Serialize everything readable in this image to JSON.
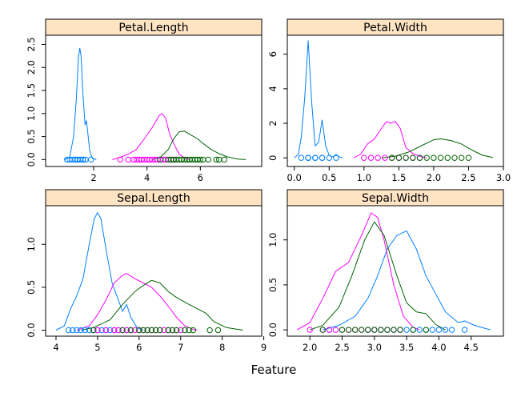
{
  "chart_data": {
    "type": "line",
    "subtype": "density-lattice",
    "xlabel": "Feature",
    "colors": {
      "strip_background": "#ffe4c4",
      "setosa": "#0080ff",
      "versicolor": "#ff00ff",
      "virginica": "#006400"
    },
    "series_order": [
      "setosa",
      "versicolor",
      "virginica"
    ],
    "panels": [
      {
        "title": "Petal.Length",
        "xlim": [
          0.2,
          8.3
        ],
        "ylim": [
          -0.15,
          2.7
        ],
        "xticks": [
          2,
          4,
          6
        ],
        "xtick_labels": [
          "2",
          "4",
          "6"
        ],
        "yticks": [
          0,
          0.5,
          1,
          1.5,
          2,
          2.5
        ],
        "ytick_labels": [
          "0.0",
          "0.5",
          "1.0",
          "1.5",
          "2.0",
          "2.5"
        ],
        "densities": {
          "setosa": [
            [
              0.9,
              0
            ],
            [
              1.1,
              0.05
            ],
            [
              1.25,
              0.5
            ],
            [
              1.35,
              1.3
            ],
            [
              1.43,
              2.2
            ],
            [
              1.48,
              2.42
            ],
            [
              1.53,
              2.25
            ],
            [
              1.6,
              1.4
            ],
            [
              1.68,
              0.75
            ],
            [
              1.73,
              0.85
            ],
            [
              1.77,
              0.65
            ],
            [
              1.85,
              0.2
            ],
            [
              1.95,
              0.03
            ],
            [
              2.1,
              0
            ]
          ],
          "versicolor": [
            [
              2.7,
              0
            ],
            [
              3.0,
              0.05
            ],
            [
              3.3,
              0.12
            ],
            [
              3.6,
              0.22
            ],
            [
              3.9,
              0.45
            ],
            [
              4.2,
              0.7
            ],
            [
              4.45,
              0.95
            ],
            [
              4.55,
              1.0
            ],
            [
              4.7,
              0.9
            ],
            [
              4.85,
              0.55
            ],
            [
              5.0,
              0.35
            ],
            [
              5.2,
              0.12
            ],
            [
              5.45,
              0.02
            ],
            [
              5.6,
              0
            ]
          ],
          "virginica": [
            [
              4.2,
              0
            ],
            [
              4.5,
              0.05
            ],
            [
              4.8,
              0.22
            ],
            [
              5.0,
              0.45
            ],
            [
              5.2,
              0.6
            ],
            [
              5.4,
              0.62
            ],
            [
              5.6,
              0.55
            ],
            [
              5.9,
              0.45
            ],
            [
              6.1,
              0.35
            ],
            [
              6.4,
              0.22
            ],
            [
              6.7,
              0.13
            ],
            [
              7.0,
              0.06
            ],
            [
              7.4,
              0.01
            ],
            [
              7.7,
              0
            ]
          ]
        },
        "points": {
          "setosa": [
            1.0,
            1.1,
            1.2,
            1.3,
            1.3,
            1.4,
            1.4,
            1.5,
            1.5,
            1.6,
            1.6,
            1.7,
            1.9
          ],
          "versicolor": [
            3.0,
            3.3,
            3.5,
            3.6,
            3.7,
            3.8,
            3.9,
            4.0,
            4.1,
            4.2,
            4.3,
            4.4,
            4.5,
            4.6,
            4.7,
            4.8,
            4.9,
            5.0,
            5.1
          ],
          "virginica": [
            4.5,
            4.8,
            4.9,
            5.0,
            5.1,
            5.2,
            5.3,
            5.4,
            5.5,
            5.6,
            5.7,
            5.8,
            5.9,
            6.0,
            6.1,
            6.3,
            6.6,
            6.7,
            6.9
          ]
        }
      },
      {
        "title": "Petal.Width",
        "xlim": [
          -0.1,
          3.0
        ],
        "ylim": [
          -0.5,
          7.1
        ],
        "xticks": [
          0.0,
          0.5,
          1.0,
          1.5,
          2.0,
          2.5,
          3.0
        ],
        "xtick_labels": [
          "0.0",
          "0.5",
          "1.0",
          "1.5",
          "2.0",
          "2.5",
          "3.0"
        ],
        "yticks": [
          0,
          2,
          4,
          6
        ],
        "ytick_labels": [
          "0",
          "2",
          "4",
          "6"
        ],
        "densities": {
          "setosa": [
            [
              0.0,
              0
            ],
            [
              0.06,
              0.2
            ],
            [
              0.1,
              1.2
            ],
            [
              0.15,
              3.5
            ],
            [
              0.2,
              6.8
            ],
            [
              0.25,
              3.2
            ],
            [
              0.3,
              0.7
            ],
            [
              0.35,
              0.9
            ],
            [
              0.4,
              2.2
            ],
            [
              0.45,
              0.7
            ],
            [
              0.5,
              0.15
            ],
            [
              0.55,
              0.05
            ],
            [
              0.6,
              0.2
            ],
            [
              0.65,
              0.05
            ],
            [
              0.7,
              0
            ]
          ],
          "versicolor": [
            [
              0.85,
              0
            ],
            [
              0.95,
              0.2
            ],
            [
              1.05,
              0.8
            ],
            [
              1.15,
              1.1
            ],
            [
              1.25,
              1.7
            ],
            [
              1.32,
              2.1
            ],
            [
              1.38,
              2.0
            ],
            [
              1.45,
              2.1
            ],
            [
              1.52,
              1.7
            ],
            [
              1.6,
              0.6
            ],
            [
              1.7,
              0.25
            ],
            [
              1.8,
              0.1
            ],
            [
              1.9,
              0
            ]
          ],
          "virginica": [
            [
              1.25,
              0
            ],
            [
              1.45,
              0.1
            ],
            [
              1.65,
              0.35
            ],
            [
              1.85,
              0.75
            ],
            [
              2.0,
              1.05
            ],
            [
              2.1,
              1.1
            ],
            [
              2.25,
              1.0
            ],
            [
              2.4,
              0.8
            ],
            [
              2.55,
              0.45
            ],
            [
              2.7,
              0.15
            ],
            [
              2.85,
              0.02
            ]
          ]
        },
        "points": {
          "setosa": [
            0.1,
            0.2,
            0.2,
            0.2,
            0.3,
            0.3,
            0.4,
            0.4,
            0.5,
            0.6
          ],
          "versicolor": [
            1.0,
            1.1,
            1.2,
            1.3,
            1.4,
            1.5,
            1.6,
            1.7,
            1.8
          ],
          "virginica": [
            1.4,
            1.5,
            1.6,
            1.7,
            1.8,
            1.9,
            2.0,
            2.1,
            2.2,
            2.3,
            2.4,
            2.5
          ]
        }
      },
      {
        "title": "Sepal.Length",
        "xlim": [
          3.75,
          8.95
        ],
        "ylim": [
          -0.07,
          1.45
        ],
        "xticks": [
          4,
          5,
          6,
          7,
          8,
          9
        ],
        "xtick_labels": [
          "4",
          "5",
          "6",
          "7",
          "8",
          "9"
        ],
        "yticks": [
          0,
          0.5,
          1
        ],
        "ytick_labels": [
          "0.0",
          "0.5",
          "1.0"
        ],
        "densities": {
          "setosa": [
            [
              4.0,
              0
            ],
            [
              4.2,
              0.05
            ],
            [
              4.35,
              0.25
            ],
            [
              4.5,
              0.4
            ],
            [
              4.65,
              0.6
            ],
            [
              4.8,
              1.0
            ],
            [
              4.92,
              1.3
            ],
            [
              5.0,
              1.37
            ],
            [
              5.08,
              1.3
            ],
            [
              5.2,
              0.95
            ],
            [
              5.35,
              0.55
            ],
            [
              5.5,
              0.35
            ],
            [
              5.6,
              0.22
            ],
            [
              5.7,
              0.3
            ],
            [
              5.8,
              0.15
            ],
            [
              5.95,
              0.03
            ],
            [
              6.1,
              0
            ]
          ],
          "versicolor": [
            [
              4.5,
              0
            ],
            [
              4.8,
              0.05
            ],
            [
              5.0,
              0.18
            ],
            [
              5.2,
              0.35
            ],
            [
              5.4,
              0.55
            ],
            [
              5.6,
              0.64
            ],
            [
              5.7,
              0.66
            ],
            [
              5.9,
              0.6
            ],
            [
              6.1,
              0.55
            ],
            [
              6.3,
              0.5
            ],
            [
              6.5,
              0.4
            ],
            [
              6.7,
              0.28
            ],
            [
              6.9,
              0.15
            ],
            [
              7.1,
              0.05
            ],
            [
              7.3,
              0.01
            ],
            [
              7.4,
              0
            ]
          ],
          "virginica": [
            [
              4.6,
              0
            ],
            [
              4.9,
              0.03
            ],
            [
              5.3,
              0.12
            ],
            [
              5.6,
              0.3
            ],
            [
              5.9,
              0.45
            ],
            [
              6.1,
              0.52
            ],
            [
              6.3,
              0.58
            ],
            [
              6.5,
              0.55
            ],
            [
              6.7,
              0.45
            ],
            [
              6.9,
              0.38
            ],
            [
              7.2,
              0.3
            ],
            [
              7.4,
              0.25
            ],
            [
              7.6,
              0.2
            ],
            [
              7.8,
              0.1
            ],
            [
              8.1,
              0.03
            ],
            [
              8.5,
              0
            ]
          ]
        },
        "points": {
          "setosa": [
            4.3,
            4.4,
            4.5,
            4.6,
            4.7,
            4.8,
            4.9,
            5.0,
            5.1,
            5.2,
            5.3,
            5.4,
            5.5,
            5.7,
            5.8
          ],
          "versicolor": [
            4.9,
            5.0,
            5.2,
            5.4,
            5.5,
            5.6,
            5.7,
            5.8,
            5.9,
            6.0,
            6.1,
            6.2,
            6.3,
            6.4,
            6.5,
            6.6,
            6.7,
            6.8,
            6.9,
            7.0
          ],
          "virginica": [
            4.9,
            5.6,
            5.8,
            6.0,
            6.1,
            6.2,
            6.3,
            6.4,
            6.5,
            6.7,
            6.8,
            6.9,
            7.1,
            7.2,
            7.3,
            7.7,
            7.9
          ]
        }
      },
      {
        "title": "Sepal.Width",
        "xlim": [
          1.65,
          5.0
        ],
        "ylim": [
          -0.07,
          1.38
        ],
        "xticks": [
          2.0,
          2.5,
          3.0,
          3.5,
          4.0,
          4.5
        ],
        "xtick_labels": [
          "2.0",
          "2.5",
          "3.0",
          "3.5",
          "4.0",
          "4.5"
        ],
        "yticks": [
          0,
          0.5,
          1
        ],
        "ytick_labels": [
          "0.0",
          "0.5",
          "1.0"
        ],
        "densities": {
          "setosa": [
            [
              2.2,
              0
            ],
            [
              2.45,
              0.05
            ],
            [
              2.7,
              0.15
            ],
            [
              2.9,
              0.35
            ],
            [
              3.05,
              0.6
            ],
            [
              3.2,
              0.9
            ],
            [
              3.35,
              1.05
            ],
            [
              3.5,
              1.1
            ],
            [
              3.65,
              0.9
            ],
            [
              3.8,
              0.6
            ],
            [
              3.95,
              0.4
            ],
            [
              4.1,
              0.2
            ],
            [
              4.3,
              0.08
            ],
            [
              4.4,
              0.1
            ],
            [
              4.55,
              0.05
            ],
            [
              4.8,
              0
            ]
          ],
          "versicolor": [
            [
              1.8,
              0
            ],
            [
              2.0,
              0.08
            ],
            [
              2.2,
              0.35
            ],
            [
              2.4,
              0.65
            ],
            [
              2.6,
              0.75
            ],
            [
              2.8,
              1.05
            ],
            [
              2.95,
              1.3
            ],
            [
              3.05,
              1.25
            ],
            [
              3.15,
              1.0
            ],
            [
              3.3,
              0.5
            ],
            [
              3.45,
              0.15
            ],
            [
              3.6,
              0.03
            ],
            [
              3.7,
              0
            ]
          ],
          "virginica": [
            [
              2.0,
              0
            ],
            [
              2.2,
              0.05
            ],
            [
              2.45,
              0.25
            ],
            [
              2.65,
              0.6
            ],
            [
              2.85,
              1.0
            ],
            [
              3.0,
              1.2
            ],
            [
              3.15,
              1.05
            ],
            [
              3.35,
              0.6
            ],
            [
              3.5,
              0.3
            ],
            [
              3.65,
              0.2
            ],
            [
              3.8,
              0.18
            ],
            [
              3.95,
              0.06
            ],
            [
              4.1,
              0
            ]
          ]
        },
        "points": {
          "setosa": [
            2.3,
            2.9,
            3.0,
            3.1,
            3.2,
            3.3,
            3.4,
            3.5,
            3.6,
            3.7,
            3.8,
            3.9,
            4.0,
            4.1,
            4.2,
            4.4
          ],
          "versicolor": [
            2.0,
            2.2,
            2.3,
            2.4,
            2.5,
            2.6,
            2.7,
            2.8,
            2.9,
            3.0,
            3.1,
            3.2,
            3.3,
            3.4
          ],
          "virginica": [
            2.2,
            2.5,
            2.6,
            2.7,
            2.8,
            2.9,
            3.0,
            3.1,
            3.2,
            3.3,
            3.4,
            3.6,
            3.8
          ]
        }
      }
    ]
  }
}
